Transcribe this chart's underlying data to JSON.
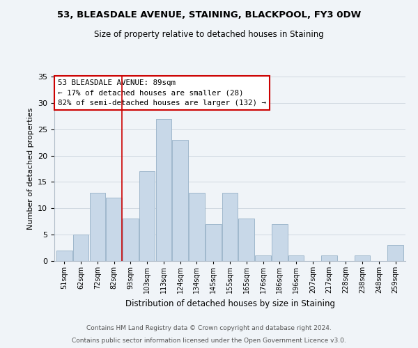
{
  "title": "53, BLEASDALE AVENUE, STAINING, BLACKPOOL, FY3 0DW",
  "subtitle": "Size of property relative to detached houses in Staining",
  "xlabel": "Distribution of detached houses by size in Staining",
  "ylabel": "Number of detached properties",
  "bar_labels": [
    "51sqm",
    "62sqm",
    "72sqm",
    "82sqm",
    "93sqm",
    "103sqm",
    "113sqm",
    "124sqm",
    "134sqm",
    "145sqm",
    "155sqm",
    "165sqm",
    "176sqm",
    "186sqm",
    "196sqm",
    "207sqm",
    "217sqm",
    "228sqm",
    "238sqm",
    "248sqm",
    "259sqm"
  ],
  "bar_values": [
    2,
    5,
    13,
    12,
    8,
    17,
    27,
    23,
    13,
    7,
    13,
    8,
    1,
    7,
    1,
    0,
    1,
    0,
    1,
    0,
    3
  ],
  "bar_color": "#c8d8e8",
  "bar_edge_color": "#a0b8cc",
  "vline_x": 3.5,
  "vline_color": "#cc0000",
  "ylim": [
    0,
    35
  ],
  "yticks": [
    0,
    5,
    10,
    15,
    20,
    25,
    30,
    35
  ],
  "annotation_lines": [
    "53 BLEASDALE AVENUE: 89sqm",
    "← 17% of detached houses are smaller (28)",
    "82% of semi-detached houses are larger (132) →"
  ],
  "annotation_box_color": "#ffffff",
  "annotation_box_edge": "#cc0000",
  "footer_lines": [
    "Contains HM Land Registry data © Crown copyright and database right 2024.",
    "Contains public sector information licensed under the Open Government Licence v3.0."
  ],
  "background_color": "#f0f4f8",
  "grid_color": "#d0d8e0"
}
